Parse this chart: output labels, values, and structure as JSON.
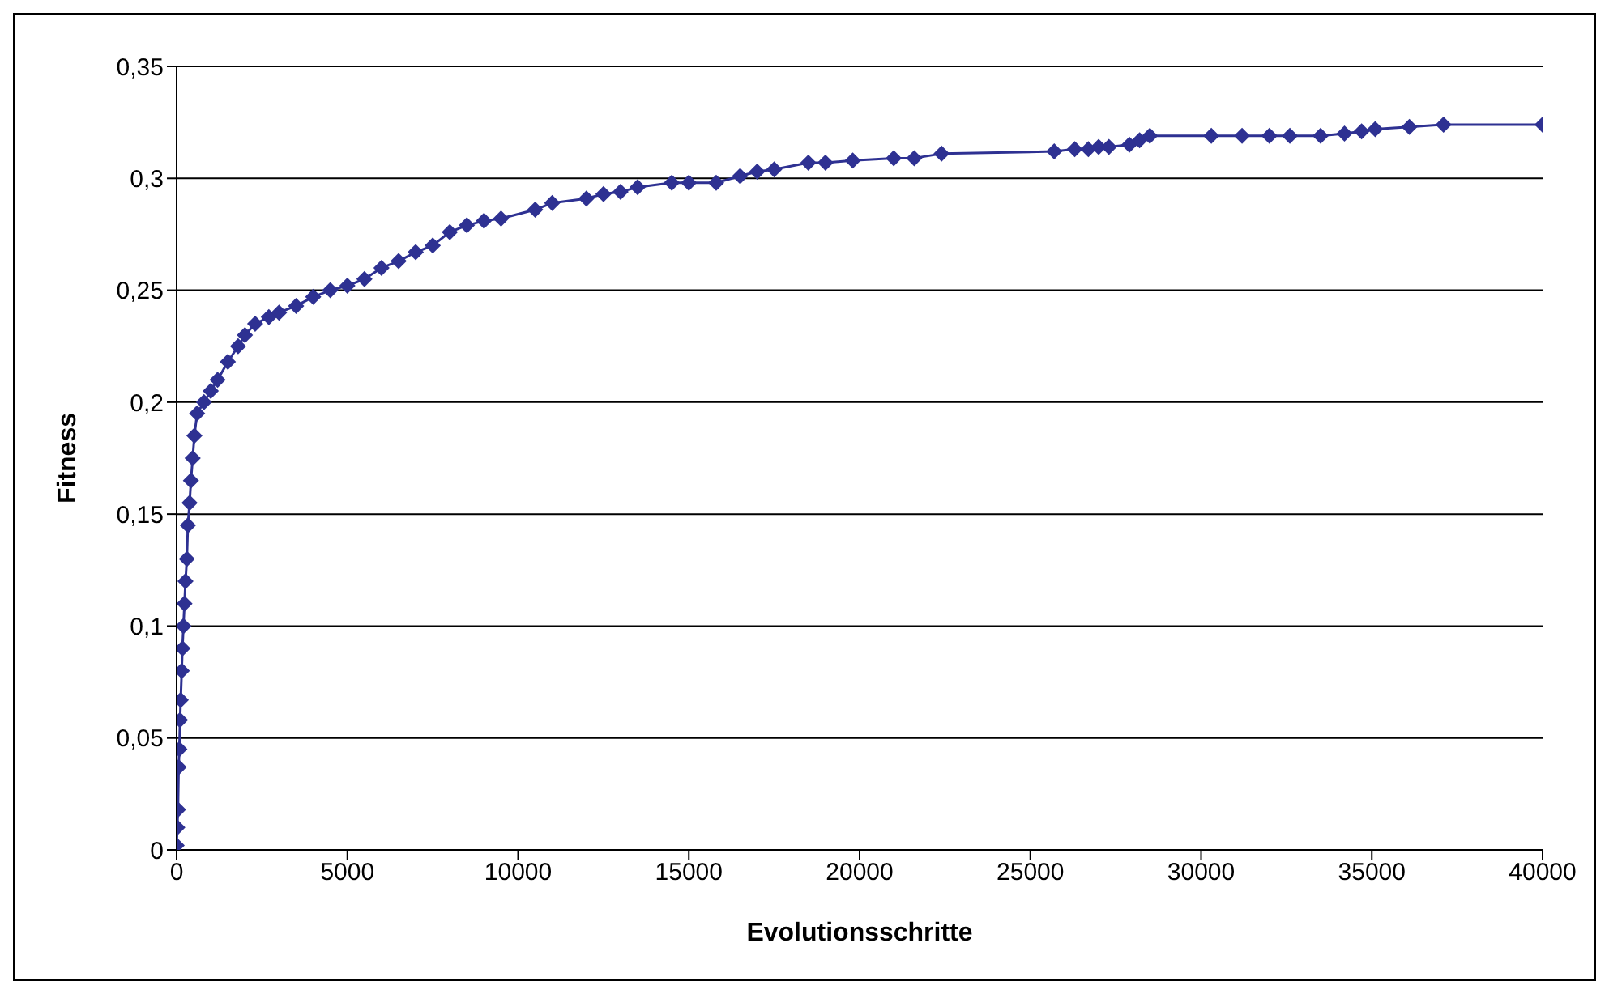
{
  "chart_data": {
    "type": "line",
    "xlabel": "Evolutionsschritte",
    "ylabel": "Fitness",
    "marker": "diamond",
    "grid": "y",
    "legend": false,
    "xlim": [
      0,
      40000
    ],
    "xticks": [
      0,
      5000,
      10000,
      15000,
      20000,
      25000,
      30000,
      35000,
      40000
    ],
    "ylim": [
      0,
      0.35
    ],
    "yticks": [
      {
        "value": 0,
        "label": "0"
      },
      {
        "value": 0.05,
        "label": "0,05"
      },
      {
        "value": 0.1,
        "label": "0,1"
      },
      {
        "value": 0.15,
        "label": "0,15"
      },
      {
        "value": 0.2,
        "label": "0,2"
      },
      {
        "value": 0.25,
        "label": "0,25"
      },
      {
        "value": 0.3,
        "label": "0,3"
      },
      {
        "value": 0.35,
        "label": "0,35"
      }
    ],
    "series": [
      {
        "color": "#2e3192",
        "x": [
          0,
          20,
          40,
          60,
          80,
          100,
          120,
          150,
          170,
          200,
          230,
          260,
          300,
          330,
          380,
          420,
          470,
          520,
          600,
          800,
          1000,
          1200,
          1500,
          1800,
          2000,
          2300,
          2700,
          3000,
          3500,
          4000,
          4500,
          5000,
          5500,
          6000,
          6500,
          7000,
          7500,
          8000,
          8500,
          9000,
          9500,
          10500,
          11000,
          12000,
          12500,
          13000,
          13500,
          14500,
          15000,
          15800,
          16500,
          17000,
          17500,
          18500,
          19000,
          19800,
          21000,
          21600,
          22400,
          25700,
          26300,
          26700,
          27000,
          27300,
          27900,
          28200,
          28500,
          30300,
          31200,
          32000,
          32600,
          33500,
          34200,
          34700,
          35100,
          36100,
          37100,
          40000
        ],
        "values": [
          0.002,
          0.01,
          0.018,
          0.037,
          0.045,
          0.058,
          0.067,
          0.08,
          0.09,
          0.1,
          0.11,
          0.12,
          0.13,
          0.145,
          0.155,
          0.165,
          0.175,
          0.185,
          0.195,
          0.2,
          0.205,
          0.21,
          0.218,
          0.225,
          0.23,
          0.235,
          0.238,
          0.24,
          0.243,
          0.247,
          0.25,
          0.252,
          0.255,
          0.26,
          0.263,
          0.267,
          0.27,
          0.276,
          0.279,
          0.281,
          0.282,
          0.286,
          0.289,
          0.291,
          0.293,
          0.294,
          0.296,
          0.298,
          0.298,
          0.298,
          0.301,
          0.303,
          0.304,
          0.307,
          0.307,
          0.308,
          0.309,
          0.309,
          0.311,
          0.312,
          0.313,
          0.313,
          0.314,
          0.314,
          0.315,
          0.317,
          0.319,
          0.319,
          0.319,
          0.319,
          0.319,
          0.319,
          0.32,
          0.321,
          0.322,
          0.323,
          0.324,
          0.324
        ]
      }
    ]
  }
}
